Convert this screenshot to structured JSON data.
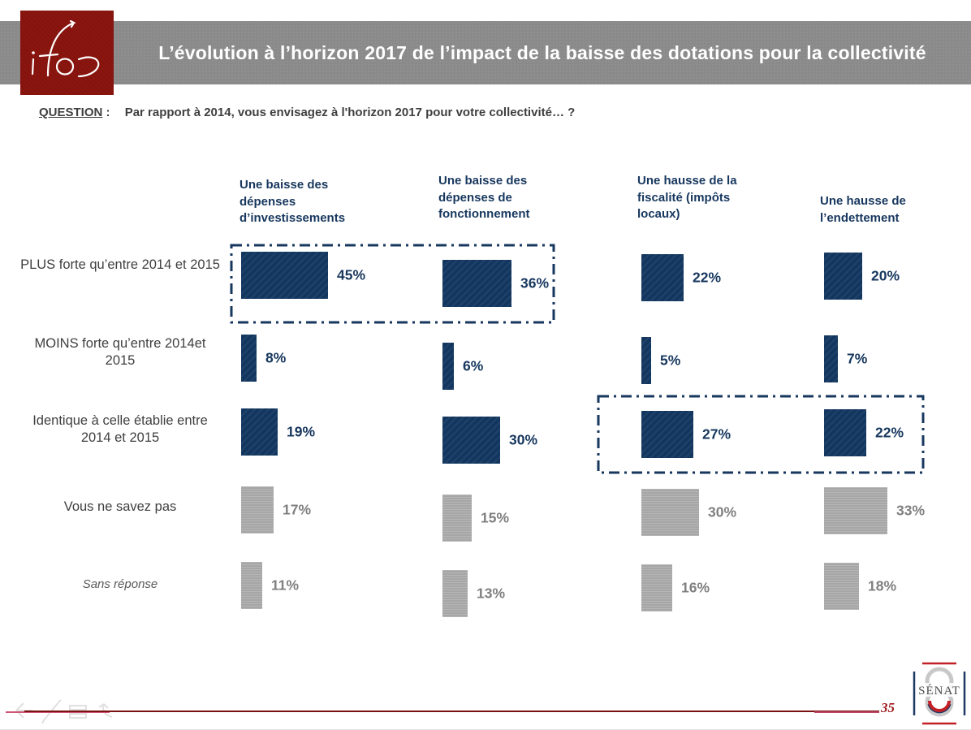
{
  "header": {
    "logo_text": "ifop",
    "title": "L’évolution à l’horizon 2017 de l’impact de la baisse des dotations pour la collectivité"
  },
  "question": {
    "label": "QUESTION",
    "separator": ":",
    "text": "Par rapport à 2014, vous envisagez à l'horizon 2017 pour votre collectivité… ?"
  },
  "chart_data": {
    "type": "bar",
    "orientation": "horizontal",
    "value_suffix": "%",
    "categories": [
      "PLUS forte qu’entre 2014 et 2015",
      "MOINS forte qu’entre 2014et 2015",
      "Identique à celle établie entre 2014 et 2015",
      "Vous ne savez pas",
      "Sans réponse"
    ],
    "series": [
      {
        "name": "Une baisse des dépenses d’investissements",
        "values": [
          45,
          8,
          19,
          17,
          11
        ]
      },
      {
        "name": "Une baisse des dépenses de fonctionnement",
        "values": [
          36,
          6,
          30,
          15,
          13
        ]
      },
      {
        "name": "Une hausse de la fiscalité (impôts locaux)",
        "values": [
          22,
          5,
          27,
          30,
          16
        ]
      },
      {
        "name": "Une hausse de l’endettement",
        "values": [
          20,
          7,
          22,
          33,
          18
        ]
      }
    ],
    "row_styles": [
      "navy",
      "navy",
      "navy",
      "gray",
      "gray"
    ],
    "colors": {
      "navy_bar": "#12365f",
      "navy_label": "#17375e",
      "gray_bar": "#a6a6a6",
      "gray_label": "#7f7f7f",
      "highlight_border": "#17375e"
    },
    "highlights": [
      {
        "rows": [
          0
        ],
        "series": [
          0,
          1
        ]
      },
      {
        "rows": [
          2
        ],
        "series": [
          2,
          3
        ]
      }
    ],
    "legend": "none",
    "grid": false
  },
  "footer": {
    "page_number": "35",
    "senat_text": "SÉNAT"
  },
  "colors": {
    "banner_gray": "#8a8a8a",
    "logo_red": "#8b150f",
    "footer_line_maroon": "#7b1113",
    "footer_line_pink": "#cf5677",
    "page_number_red": "#9e1a1e"
  }
}
